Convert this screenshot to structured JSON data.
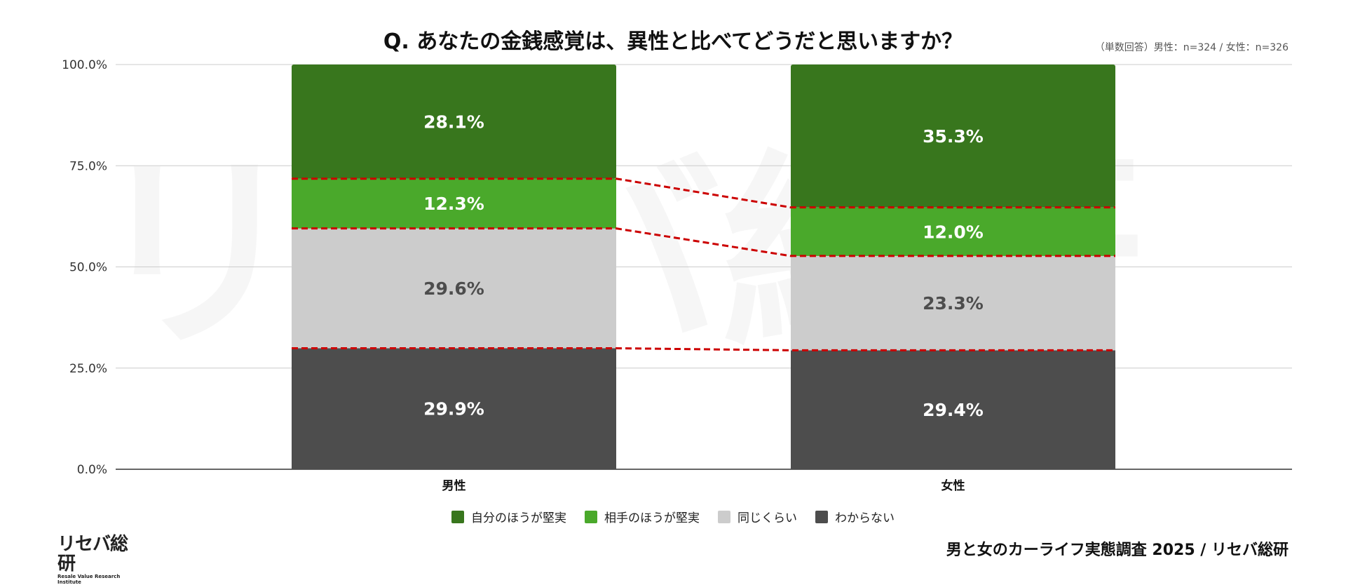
{
  "chart_data": {
    "type": "bar",
    "stacked": true,
    "title": "Q. あなたの金銭感覚は、異性と比べてどうだと思いますか？",
    "note": "（単数回答）男性：n=324 / 女性：n=326",
    "categories": [
      "男性",
      "女性"
    ],
    "ylim": [
      0,
      100
    ],
    "yticks": [
      "0.0%",
      "25.0%",
      "50.0%",
      "75.0%",
      "100.0%"
    ],
    "grid": true,
    "legend_position": "bottom",
    "series": [
      {
        "name": "わからない",
        "values": [
          29.9,
          29.4
        ],
        "color": "#4d4d4d",
        "label_color": "#ffffff"
      },
      {
        "name": "同じくらい",
        "values": [
          29.6,
          23.3
        ],
        "color": "#cccccc",
        "label_color": "#4d4d4d"
      },
      {
        "name": "相手のほうが堅実",
        "values": [
          12.3,
          12.0
        ],
        "color": "#4aa92b",
        "label_color": "#ffffff"
      },
      {
        "name": "自分のほうが堅実",
        "values": [
          28.1,
          35.3
        ],
        "color": "#38761d",
        "label_color": "#ffffff"
      }
    ],
    "legend_order": [
      "自分のほうが堅実",
      "相手のほうが堅実",
      "同じくらい",
      "わからない"
    ],
    "connector_color": "#cc0000"
  },
  "footer": "男と女のカーライフ実態調査 2025 / リセバ総研",
  "logo": {
    "main": "リセバ総研",
    "sub": "Resale Value Research Institute"
  }
}
